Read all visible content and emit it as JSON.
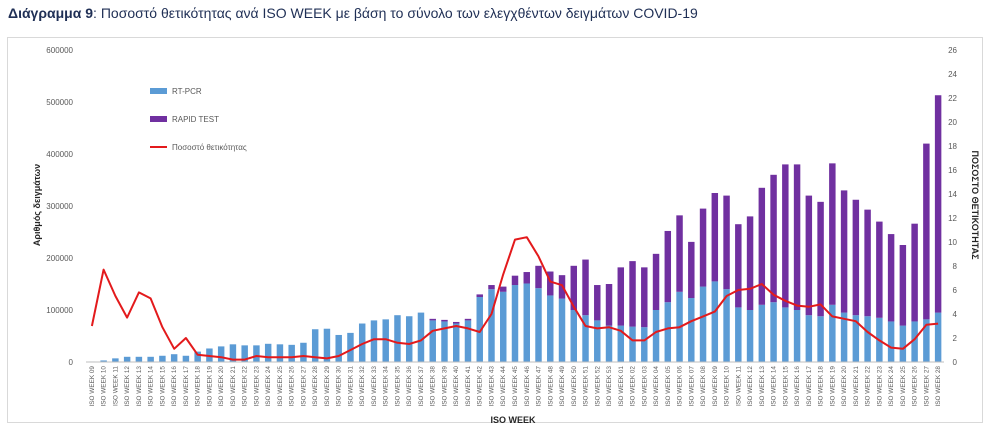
{
  "header": {
    "figure_number": "Διάγραμμα 9",
    "title": "Ποσοστό θετικότητας ανά ISO WEEK με βάση το σύνολο των ελεγχθέντων δειγμάτων COVID-19"
  },
  "chart_data": {
    "type": "bar",
    "stacked": true,
    "xlabel": "ISO WEEK",
    "ylabel": "Αριθμός δειγμάτων",
    "y2label": "ΠΟΣΟΣΤΟ ΘΕΤΙΚΟΤΗΤΑΣ",
    "ylim": [
      0,
      600000
    ],
    "yticks": [
      0,
      100000,
      200000,
      300000,
      400000,
      500000,
      600000
    ],
    "y2lim": [
      0,
      26
    ],
    "y2ticks": [
      0,
      2,
      4,
      6,
      8,
      10,
      12,
      14,
      16,
      18,
      20,
      22,
      24,
      26
    ],
    "grid": false,
    "legend_position": "top-left",
    "categories": [
      "ISO WEEK 09",
      "ISO WEEK 10",
      "ISO WEEK 11",
      "ISO WEEK 12",
      "ISO WEEK 13",
      "ISO WEEK 14",
      "ISO WEEK 15",
      "ISO WEEK 16",
      "ISO WEEK 17",
      "ISO WEEK 18",
      "ISO WEEK 19",
      "ISO WEEK 20",
      "ISO WEEK 21",
      "ISO WEEK 22",
      "ISO WEEK 23",
      "ISO WEEK 24",
      "ISO WEEK 25",
      "ISO WEEK 26",
      "ISO WEEK 27",
      "ISO WEEK 28",
      "ISO WEEK 29",
      "ISO WEEK 30",
      "ISO WEEK 31",
      "ISO WEEK 32",
      "ISO WEEK 33",
      "ISO WEEK 34",
      "ISO WEEK 35",
      "ISO WEEK 36",
      "ISO WEEK 37",
      "ISO WEEK 38",
      "ISO WEEK 39",
      "ISO WEEK 40",
      "ISO WEEK 41",
      "ISO WEEK 42",
      "ISO WEEK 43",
      "ISO WEEK 44",
      "ISO WEEK 45",
      "ISO WEEK 46",
      "ISO WEEK 47",
      "ISO WEEK 48",
      "ISO WEEK 49",
      "ISO WEEK 50",
      "ISO WEEK 51",
      "ISO WEEK 52",
      "ISO WEEK 53",
      "ISO WEEK 01",
      "ISO WEEK 02",
      "ISO WEEK 03",
      "ISO WEEK 04",
      "ISO WEEK 05",
      "ISO WEEK 06",
      "ISO WEEK 07",
      "ISO WEEK 08",
      "ISO WEEK 09",
      "ISO WEEK 10",
      "ISO WEEK 11",
      "ISO WEEK 12",
      "ISO WEEK 13",
      "ISO WEEK 14",
      "ISO WEEK 15",
      "ISO WEEK 16",
      "ISO WEEK 17",
      "ISO WEEK 18",
      "ISO WEEK 19",
      "ISO WEEK 20",
      "ISO WEEK 21",
      "ISO WEEK 22",
      "ISO WEEK 23",
      "ISO WEEK 24",
      "ISO WEEK 25",
      "ISO WEEK 26",
      "ISO WEEK 27",
      "ISO WEEK 28"
    ],
    "series": [
      {
        "name": "RT-PCR",
        "kind": "bar",
        "color": "#5b9bd5",
        "values": [
          1000,
          3000,
          7000,
          10000,
          10000,
          10000,
          12000,
          15000,
          12000,
          20000,
          26000,
          30000,
          34000,
          32000,
          32000,
          35000,
          34000,
          33000,
          37000,
          63000,
          64000,
          52000,
          56000,
          74000,
          80000,
          82000,
          90000,
          88000,
          95000,
          80000,
          78000,
          74000,
          80000,
          125000,
          140000,
          135000,
          148000,
          151000,
          142000,
          128000,
          122000,
          100000,
          90000,
          80000,
          70000,
          70000,
          68000,
          67000,
          100000,
          115000,
          135000,
          123000,
          145000,
          155000,
          140000,
          105000,
          100000,
          110000,
          115000,
          105000,
          100000,
          90000,
          88000,
          110000,
          95000,
          90000,
          88000,
          85000,
          78000,
          70000,
          78000,
          82000,
          95000
        ]
      },
      {
        "name": "RAPID TEST",
        "kind": "bar",
        "color": "#7030a0",
        "values": [
          0,
          0,
          0,
          0,
          0,
          0,
          0,
          0,
          0,
          0,
          0,
          0,
          0,
          0,
          0,
          0,
          0,
          0,
          0,
          0,
          0,
          0,
          0,
          0,
          0,
          0,
          0,
          0,
          0,
          3000,
          3000,
          3000,
          3000,
          5000,
          8000,
          10000,
          18000,
          22000,
          43000,
          46000,
          45000,
          85000,
          107000,
          68000,
          80000,
          112000,
          126000,
          115000,
          108000,
          137000,
          147000,
          108000,
          150000,
          170000,
          180000,
          160000,
          180000,
          225000,
          245000,
          275000,
          280000,
          230000,
          220000,
          272000,
          235000,
          222000,
          205000,
          185000,
          168000,
          155000,
          188000,
          338000,
          418000
        ]
      },
      {
        "name": "Ποσοστό θετικότητας",
        "kind": "line",
        "axis": "right",
        "color": "#e31a1c",
        "values": [
          3.0,
          7.7,
          5.5,
          3.7,
          5.8,
          5.3,
          2.9,
          1.1,
          2.0,
          0.6,
          0.5,
          0.4,
          0.2,
          0.2,
          0.5,
          0.4,
          0.4,
          0.4,
          0.5,
          0.4,
          0.3,
          0.5,
          1.0,
          1.5,
          1.9,
          1.9,
          1.6,
          1.5,
          1.8,
          2.6,
          2.8,
          3.0,
          2.8,
          2.5,
          4.0,
          7.3,
          10.2,
          10.4,
          8.8,
          6.7,
          6.4,
          4.6,
          3.0,
          2.8,
          2.9,
          2.6,
          1.8,
          1.8,
          2.5,
          2.8,
          2.9,
          3.4,
          3.8,
          4.2,
          5.5,
          6.0,
          6.1,
          6.5,
          5.6,
          5.1,
          4.7,
          4.6,
          4.8,
          3.8,
          3.6,
          3.4,
          2.5,
          1.8,
          1.2,
          1.1,
          1.9,
          3.1,
          3.2
        ]
      }
    ]
  }
}
